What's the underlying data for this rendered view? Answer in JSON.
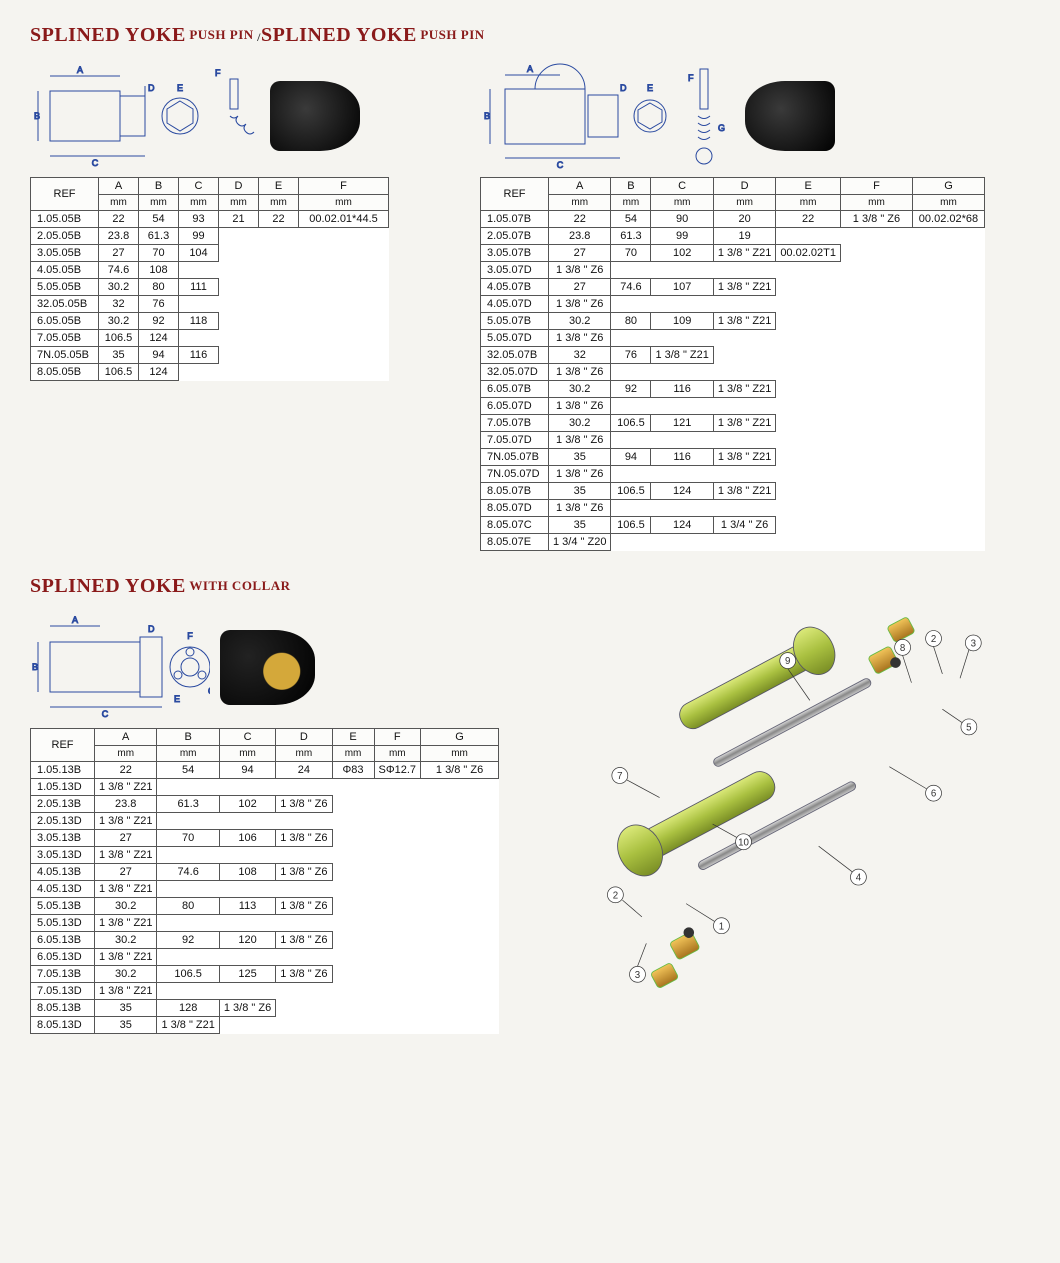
{
  "titles": {
    "t1_big1": "SPLINED YOKE",
    "t1_sm1": "PUSH PIN",
    "t1_big2": "SPLINED YOKE",
    "t1_sm2": "PUSH PIN",
    "t2_big": "SPLINED YOKE",
    "t2_sm": "WITH COLLAR"
  },
  "colors": {
    "title": "#8a1a1a",
    "diagram_line": "#2a4aa0",
    "table_border": "#555",
    "bg": "#f5f4f0"
  },
  "table1": {
    "headers": [
      "REF",
      "A",
      "B",
      "C",
      "D",
      "E",
      "F"
    ],
    "units": [
      "",
      "mm",
      "mm",
      "mm",
      "mm",
      "mm",
      "mm"
    ],
    "ref": [
      "1.05.05B",
      "2.05.05B",
      "3.05.05B",
      "4.05.05B",
      "5.05.05B",
      "32.05.05B",
      "6.05.05B",
      "7.05.05B",
      "7N.05.05B",
      "8.05.05B"
    ],
    "A": [
      "22",
      "23.8",
      "27",
      "",
      "30.2",
      "32",
      "30.2",
      "",
      "35",
      ""
    ],
    "B": [
      "54",
      "61.3",
      "70",
      "74.6",
      "80",
      "76",
      "92",
      "106.5",
      "94",
      "106.5"
    ],
    "C": [
      "93",
      "99",
      "104",
      "108",
      "111",
      "",
      "118",
      "124",
      "116",
      "124"
    ],
    "D_merged": "21",
    "E_merged": "22",
    "F_merged": "00.02.01*44.5",
    "A_spans": [
      1,
      1,
      2,
      0,
      1,
      1,
      2,
      0,
      2,
      0
    ],
    "C_spans": [
      1,
      1,
      1,
      1,
      2,
      0,
      1,
      1,
      1,
      1
    ]
  },
  "table2": {
    "headers": [
      "REF",
      "A",
      "B",
      "C",
      "D",
      "E",
      "F",
      "G"
    ],
    "units": [
      "",
      "mm",
      "mm",
      "mm",
      "mm",
      "mm",
      "mm",
      "mm"
    ],
    "rows": [
      {
        "ref": "1.05.07B",
        "A": "22",
        "B": "54",
        "C": "90",
        "D": "20",
        "F": "1 3/8 \" Z6",
        "F_span": 2,
        "G": "00.02.02*68",
        "G_span": 2,
        "A_span": 1,
        "B_span": 1,
        "C_span": 1,
        "D_span": 1
      },
      {
        "ref": "2.05.07B",
        "A": "23.8",
        "B": "61.3",
        "C": "99",
        "F": null,
        "G": null,
        "A_span": 1,
        "B_span": 1,
        "C_span": 1
      },
      {
        "ref": "3.05.07B",
        "A": "27",
        "A_span": 2,
        "B": "70",
        "B_span": 2,
        "C": "102",
        "C_span": 2,
        "F": "1 3/8 \" Z21",
        "F_span": 1,
        "G": "00.02.02T1",
        "G_span": 20
      },
      {
        "ref": "3.05.07D",
        "F": "1 3/8 \" Z6",
        "F_span": 1
      },
      {
        "ref": "4.05.07B",
        "A": "27",
        "A_span": 2,
        "B": "74.6",
        "B_span": 2,
        "C": "107",
        "C_span": 2,
        "F": "1 3/8 \" Z21",
        "F_span": 1
      },
      {
        "ref": "4.05.07D",
        "F": "1 3/8 \" Z6",
        "F_span": 1
      },
      {
        "ref": "5.05.07B",
        "A": "30.2",
        "A_span": 2,
        "B": "80",
        "B_span": 2,
        "C": "109",
        "C_span": 4,
        "F": "1 3/8 \" Z21",
        "F_span": 1
      },
      {
        "ref": "5.05.07D",
        "F": "1 3/8 \" Z6",
        "F_span": 1
      },
      {
        "ref": "32.05.07B",
        "A": "32",
        "A_span": 2,
        "B": "76",
        "B_span": 2,
        "F": "1 3/8 \" Z21",
        "F_span": 1
      },
      {
        "ref": "32.05.07D",
        "F": "1 3/8 \" Z6",
        "F_span": 1
      },
      {
        "ref": "6.05.07B",
        "A": "30.2",
        "A_span": 2,
        "B": "92",
        "B_span": 2,
        "C": "116",
        "C_span": 2,
        "F": "1 3/8 \" Z21",
        "F_span": 1
      },
      {
        "ref": "6.05.07D",
        "F": "1 3/8 \" Z6",
        "F_span": 1
      },
      {
        "ref": "7.05.07B",
        "A": "30.2",
        "A_span": 2,
        "B": "106.5",
        "B_span": 2,
        "C": "121",
        "C_span": 2,
        "F": "1 3/8 \" Z21",
        "F_span": 1
      },
      {
        "ref": "7.05.07D",
        "F": "1 3/8 \" Z6",
        "F_span": 1
      },
      {
        "ref": "7N.05.07B",
        "A": "35",
        "A_span": 2,
        "B": "94",
        "B_span": 2,
        "C": "116",
        "C_span": 2,
        "F": "1 3/8 \" Z21",
        "F_span": 1
      },
      {
        "ref": "7N.05.07D",
        "F": "1 3/8 \" Z6",
        "F_span": 1
      },
      {
        "ref": "8.05.07B",
        "A": "35",
        "A_span": 2,
        "B": "106.5",
        "B_span": 2,
        "C": "124",
        "C_span": 2,
        "F": "1 3/8 \" Z21",
        "F_span": 1
      },
      {
        "ref": "8.05.07D",
        "F": "1 3/8 \" Z6",
        "F_span": 1
      },
      {
        "ref": "8.05.07C",
        "A": "35",
        "A_span": 2,
        "B": "106.5",
        "B_span": 2,
        "C": "124",
        "C_span": 2,
        "F": "1 3/4 \" Z6",
        "F_span": 1
      },
      {
        "ref": "8.05.07E",
        "F": "1 3/4 \" Z20",
        "F_span": 1
      }
    ],
    "D_merged_val": "19",
    "D_merged_span": 19,
    "E_merged_val": "22",
    "E_merged_span": 20
  },
  "table3": {
    "headers": [
      "REF",
      "A",
      "B",
      "C",
      "D",
      "E",
      "F",
      "G"
    ],
    "units": [
      "",
      "mm",
      "mm",
      "mm",
      "mm",
      "mm",
      "mm",
      "mm"
    ],
    "rows": [
      {
        "ref": "1.05.13B",
        "A": "22",
        "A_span": 2,
        "B": "54",
        "B_span": 2,
        "C": "94",
        "C_span": 2,
        "G": "1 3/8 \" Z6"
      },
      {
        "ref": "1.05.13D",
        "G": "1 3/8 \" Z21"
      },
      {
        "ref": "2.05.13B",
        "A": "23.8",
        "A_span": 2,
        "B": "61.3",
        "B_span": 2,
        "C": "102",
        "C_span": 2,
        "G": "1 3/8 \" Z6"
      },
      {
        "ref": "2.05.13D",
        "G": "1 3/8 \" Z21"
      },
      {
        "ref": "3.05.13B",
        "A": "27",
        "A_span": 2,
        "B": "70",
        "B_span": 2,
        "C": "106",
        "C_span": 2,
        "G": "1 3/8 \" Z6"
      },
      {
        "ref": "3.05.13D",
        "G": "1 3/8 \" Z21"
      },
      {
        "ref": "4.05.13B",
        "A": "27",
        "A_span": 2,
        "B": "74.6",
        "B_span": 2,
        "C": "108",
        "C_span": 2,
        "G": "1 3/8 \" Z6"
      },
      {
        "ref": "4.05.13D",
        "G": "1 3/8 \" Z21"
      },
      {
        "ref": "5.05.13B",
        "A": "30.2",
        "A_span": 2,
        "B": "80",
        "B_span": 2,
        "C": "113",
        "C_span": 2,
        "G": "1 3/8 \" Z6"
      },
      {
        "ref": "5.05.13D",
        "G": "1 3/8 \" Z21"
      },
      {
        "ref": "6.05.13B",
        "A": "30.2",
        "A_span": 2,
        "B": "92",
        "B_span": 2,
        "C": "120",
        "C_span": 2,
        "G": "1 3/8 \" Z6"
      },
      {
        "ref": "6.05.13D",
        "G": "1 3/8 \" Z21"
      },
      {
        "ref": "7.05.13B",
        "A": "30.2",
        "A_span": 2,
        "B": "106.5",
        "B_span": 4,
        "C": "125",
        "C_span": 2,
        "G": "1 3/8 \" Z6"
      },
      {
        "ref": "7.05.13D",
        "G": "1 3/8 \" Z21"
      },
      {
        "ref": "8.05.13B",
        "A": "35",
        "A_span": 1,
        "C": "128",
        "C_span": 2,
        "G": "1 3/8 \" Z6"
      },
      {
        "ref": "8.05.13D",
        "A": "35",
        "A_span": 1,
        "G": "1 3/8 \" Z21"
      }
    ],
    "D_merged": "24",
    "E_merged": "Φ83",
    "F_merged": "SΦ12.7",
    "DEF_span": 16
  },
  "exploded_labels": [
    "1",
    "2",
    "3",
    "4",
    "5",
    "6",
    "7",
    "8",
    "9",
    "10"
  ],
  "diagram_dim_labels": [
    "A",
    "B",
    "C",
    "D",
    "E",
    "F",
    "G"
  ]
}
